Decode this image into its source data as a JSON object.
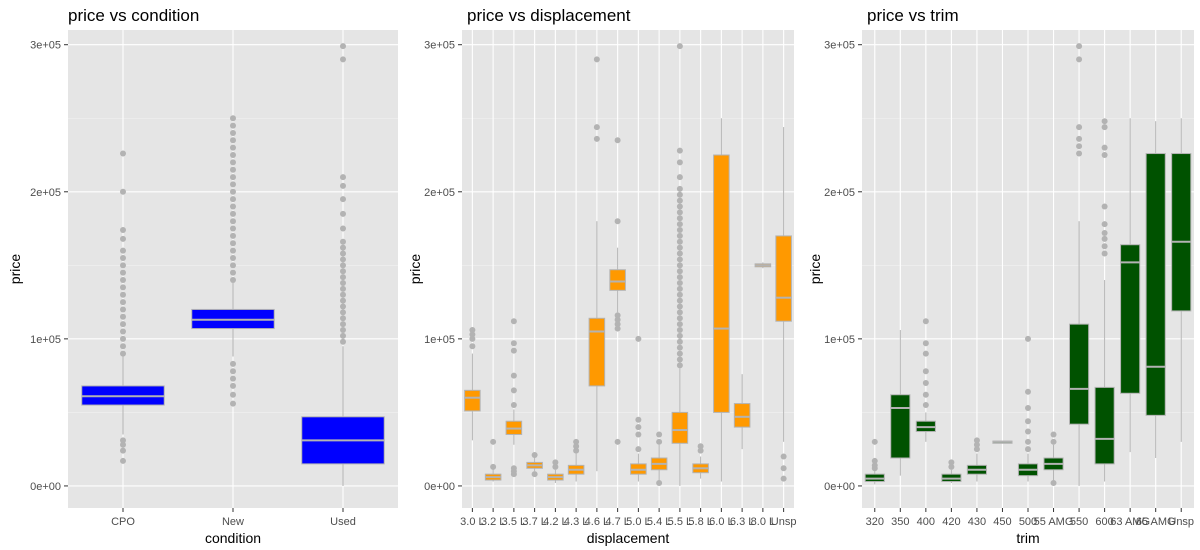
{
  "chart_data": [
    {
      "type": "boxplot",
      "title": "price vs condition",
      "xlabel": "condition",
      "ylabel": "price",
      "ylim": [
        -15000,
        310000
      ],
      "yticks": [
        0,
        100000,
        200000,
        300000
      ],
      "ytick_labels": [
        "0e+00",
        "1e+05",
        "2e+05",
        "3e+05"
      ],
      "fill": "#0000ff",
      "stroke": "#b3b3b3",
      "categories": [
        "CPO",
        "New",
        "Used"
      ],
      "boxes": [
        {
          "q1": 55000,
          "median": 61000,
          "q3": 68000,
          "whisker_low": 35000,
          "whisker_high": 88000,
          "outliers": [
            17000,
            24000,
            28000,
            31000,
            90000,
            95000,
            100000,
            105000,
            110000,
            115000,
            120000,
            125000,
            130000,
            135000,
            140000,
            145000,
            150000,
            155000,
            160000,
            168000,
            174000,
            200000,
            226000
          ]
        },
        {
          "q1": 107000,
          "median": 113000,
          "q3": 120000,
          "whisker_low": 88000,
          "whisker_high": 138000,
          "outliers": [
            56000,
            62000,
            68000,
            73000,
            78000,
            83000,
            140000,
            145000,
            150000,
            155000,
            160000,
            165000,
            170000,
            175000,
            180000,
            185000,
            190000,
            195000,
            200000,
            205000,
            210000,
            215000,
            220000,
            225000,
            230000,
            235000,
            240000,
            245000,
            250000
          ]
        },
        {
          "q1": 15000,
          "median": 31000,
          "q3": 47000,
          "whisker_low": 0,
          "whisker_high": 95000,
          "outliers": [
            98000,
            102000,
            106000,
            110000,
            114000,
            118000,
            122000,
            126000,
            130000,
            134000,
            138000,
            142000,
            146000,
            150000,
            154000,
            158000,
            162000,
            166000,
            175000,
            185000,
            195000,
            204000,
            210000,
            290000,
            299000
          ]
        }
      ]
    },
    {
      "type": "boxplot",
      "title": "price vs displacement",
      "xlabel": "displacement",
      "ylabel": "price",
      "ylim": [
        -15000,
        310000
      ],
      "yticks": [
        0,
        100000,
        200000,
        300000
      ],
      "ytick_labels": [
        "0e+00",
        "1e+05",
        "2e+05",
        "3e+05"
      ],
      "fill": "#ff9900",
      "stroke": "#b3b3b3",
      "categories": [
        "3.0 L",
        "3.2 L",
        "3.5 L",
        "3.7 L",
        "4.2 L",
        "4.3 L",
        "4.6 L",
        "4.7 L",
        "5.0 L",
        "5.4 L",
        "5.5 L",
        "5.8 L",
        "6.0 L",
        "6.3 L",
        "8.0 L",
        "Unsp"
      ],
      "boxes": [
        {
          "q1": 51000,
          "median": 60000,
          "q3": 65000,
          "whisker_low": 31000,
          "whisker_high": 90000,
          "outliers": [
            95000,
            100000,
            103000,
            106000
          ]
        },
        {
          "q1": 4000,
          "median": 6000,
          "q3": 8000,
          "whisker_low": 3000,
          "whisker_high": 12000,
          "outliers": [
            13000,
            30000
          ]
        },
        {
          "q1": 35000,
          "median": 39000,
          "q3": 44000,
          "whisker_low": 28000,
          "whisker_high": 52000,
          "outliers": [
            8000,
            10000,
            12000,
            55000,
            65000,
            75000,
            92000,
            97000,
            112000
          ]
        },
        {
          "q1": 12000,
          "median": 14000,
          "q3": 16000,
          "whisker_low": 10000,
          "whisker_high": 20000,
          "outliers": [
            8000,
            21000
          ]
        },
        {
          "q1": 4000,
          "median": 6000,
          "q3": 8000,
          "whisker_low": 2000,
          "whisker_high": 11000,
          "outliers": [
            13000,
            16000
          ]
        },
        {
          "q1": 8000,
          "median": 11000,
          "q3": 14000,
          "whisker_low": 3000,
          "whisker_high": 22000,
          "outliers": [
            24000,
            27000,
            30000
          ]
        },
        {
          "q1": 68000,
          "median": 105000,
          "q3": 114000,
          "whisker_low": 10000,
          "whisker_high": 180000,
          "outliers": [
            236000,
            244000,
            290000
          ]
        },
        {
          "q1": 133000,
          "median": 139000,
          "q3": 147000,
          "whisker_low": 118000,
          "whisker_high": 162000,
          "outliers": [
            30000,
            107000,
            110000,
            113000,
            116000,
            180000,
            235000
          ]
        },
        {
          "q1": 8000,
          "median": 11000,
          "q3": 15000,
          "whisker_low": 3000,
          "whisker_high": 22000,
          "outliers": [
            25000,
            35000,
            40000,
            45000,
            100000
          ]
        },
        {
          "q1": 11000,
          "median": 15000,
          "q3": 19000,
          "whisker_low": 3000,
          "whisker_high": 28000,
          "outliers": [
            2000,
            30000,
            35000
          ]
        },
        {
          "q1": 29000,
          "median": 38000,
          "q3": 50000,
          "whisker_low": 0,
          "whisker_high": 80000,
          "outliers": [
            82000,
            86000,
            90000,
            94000,
            98000,
            102000,
            106000,
            110000,
            114000,
            118000,
            122000,
            126000,
            130000,
            134000,
            138000,
            142000,
            146000,
            150000,
            154000,
            158000,
            162000,
            166000,
            170000,
            174000,
            178000,
            182000,
            186000,
            190000,
            194000,
            198000,
            202000,
            210000,
            220000,
            228000,
            299000
          ]
        },
        {
          "q1": 9000,
          "median": 12000,
          "q3": 15000,
          "whisker_low": 5000,
          "whisker_high": 20000,
          "outliers": [
            24000,
            27000
          ]
        },
        {
          "q1": 50000,
          "median": 107000,
          "q3": 225000,
          "whisker_low": 3000,
          "whisker_high": 250000,
          "outliers": []
        },
        {
          "q1": 40000,
          "median": 47000,
          "q3": 56000,
          "whisker_low": 25000,
          "whisker_high": 76000,
          "outliers": []
        },
        {
          "q1": 149000,
          "median": 150000,
          "q3": 151000,
          "whisker_low": 148000,
          "whisker_high": 152000,
          "outliers": []
        },
        {
          "q1": 112000,
          "median": 128000,
          "q3": 170000,
          "whisker_low": 30000,
          "whisker_high": 244000,
          "outliers": [
            5000,
            12000,
            20000
          ]
        }
      ]
    },
    {
      "type": "boxplot",
      "title": "price vs trim",
      "xlabel": "trim",
      "ylabel": "price",
      "ylim": [
        -15000,
        310000
      ],
      "yticks": [
        0,
        100000,
        200000,
        300000
      ],
      "ytick_labels": [
        "0e+00",
        "1e+05",
        "2e+05",
        "3e+05"
      ],
      "fill": "#005200",
      "stroke": "#b3b3b3",
      "categories": [
        "320",
        "350",
        "400",
        "420",
        "430",
        "450",
        "500",
        "55 AMG",
        "550",
        "600",
        "63 AMG",
        "65 AMG",
        "Unsp"
      ],
      "boxes": [
        {
          "q1": 3000,
          "median": 5000,
          "q3": 8000,
          "whisker_low": 1000,
          "whisker_high": 11000,
          "outliers": [
            12000,
            14000,
            17000,
            30000
          ]
        },
        {
          "q1": 19000,
          "median": 53000,
          "q3": 62000,
          "whisker_low": 7000,
          "whisker_high": 106000,
          "outliers": []
        },
        {
          "q1": 37000,
          "median": 40000,
          "q3": 44000,
          "whisker_low": 30000,
          "whisker_high": 50000,
          "outliers": [
            55000,
            62000,
            70000,
            78000,
            90000,
            97000,
            112000
          ]
        },
        {
          "q1": 3000,
          "median": 5000,
          "q3": 8000,
          "whisker_low": 2000,
          "whisker_high": 11000,
          "outliers": [
            13000,
            16000
          ]
        },
        {
          "q1": 8000,
          "median": 11000,
          "q3": 14000,
          "whisker_low": 3000,
          "whisker_high": 22000,
          "outliers": [
            25000,
            28000,
            31000
          ]
        },
        {
          "q1": 29000,
          "median": 30000,
          "q3": 30500,
          "whisker_low": 29000,
          "whisker_high": 30500,
          "outliers": []
        },
        {
          "q1": 7000,
          "median": 11000,
          "q3": 15000,
          "whisker_low": 3000,
          "whisker_high": 22000,
          "outliers": [
            25000,
            30000,
            37000,
            44000,
            53000,
            64000,
            100000
          ]
        },
        {
          "q1": 11000,
          "median": 15000,
          "q3": 19000,
          "whisker_low": 3000,
          "whisker_high": 28000,
          "outliers": [
            2000,
            30000,
            35000
          ]
        },
        {
          "q1": 42000,
          "median": 66000,
          "q3": 110000,
          "whisker_low": 0,
          "whisker_high": 180000,
          "outliers": [
            226000,
            231000,
            236000,
            244000,
            290000,
            299000
          ]
        },
        {
          "q1": 15000,
          "median": 32000,
          "q3": 67000,
          "whisker_low": 3000,
          "whisker_high": 140000,
          "outliers": [
            158000,
            163000,
            168000,
            172000,
            178000,
            190000,
            225000,
            230000,
            244000,
            248000
          ]
        },
        {
          "q1": 63000,
          "median": 152000,
          "q3": 164000,
          "whisker_low": 23000,
          "whisker_high": 250000,
          "outliers": []
        },
        {
          "q1": 48000,
          "median": 81000,
          "q3": 226000,
          "whisker_low": 19000,
          "whisker_high": 248000,
          "outliers": []
        },
        {
          "q1": 119000,
          "median": 166000,
          "q3": 226000,
          "whisker_low": 30000,
          "whisker_high": 250000,
          "outliers": []
        }
      ]
    }
  ]
}
